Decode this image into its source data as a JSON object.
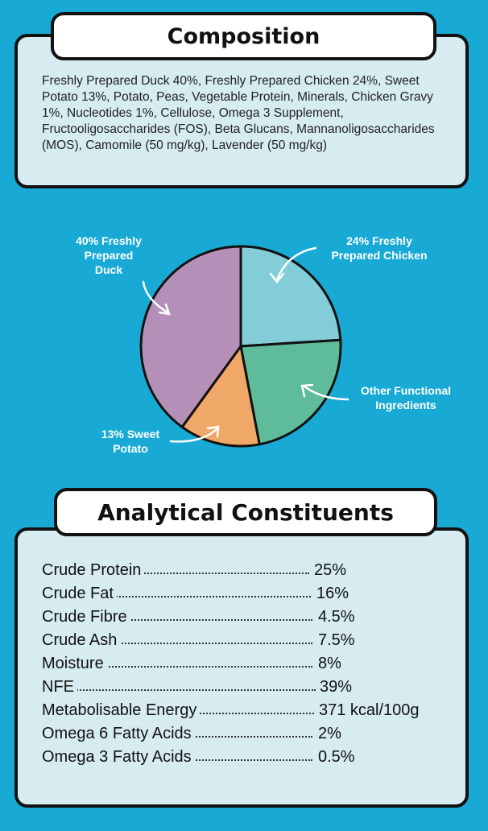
{
  "composition": {
    "title": "Composition",
    "text": "Freshly Prepared Duck 40%, Freshly Prepared Chicken 24%, Sweet Potato 13%, Potato, Peas, Vegetable Protein, Minerals, Chicken Gravy 1%, Nucleotides 1%, Cellulose, Omega 3 Supplement, Fructooligosaccharides (FOS), Beta Glucans, Mannanoligosaccharides (MOS), Camomile (50 mg/kg), Lavender (50 mg/kg)"
  },
  "chart_data": {
    "type": "pie",
    "slices": [
      {
        "label": "24% Freshly Prepared Chicken",
        "value": 24,
        "color": "#82cdd8"
      },
      {
        "label": "Other Functional Ingredients",
        "value": 23,
        "color": "#5fbc9a"
      },
      {
        "label": "13% Sweet Potato",
        "value": 13,
        "color": "#f0a868"
      },
      {
        "label": "40% Freshly Prepared Duck",
        "value": 40,
        "color": "#b48fb7"
      }
    ],
    "labels": {
      "chicken": "24% Freshly Prepared Chicken",
      "other": "Other Functional Ingredients",
      "sweet_potato": "13% Sweet Potato",
      "duck": "40% Freshly Prepared Duck"
    }
  },
  "analytical": {
    "title": "Analytical Constituents",
    "rows": [
      {
        "name": "Crude Protein",
        "value": "25%"
      },
      {
        "name": "Crude Fat",
        "value": "16%"
      },
      {
        "name": "Crude Fibre",
        "value": "4.5%"
      },
      {
        "name": "Crude Ash",
        "value": "7.5%"
      },
      {
        "name": "Moisture",
        "value": "8%"
      },
      {
        "name": "NFE",
        "value": "39%"
      },
      {
        "name": "Metabolisable Energy",
        "value": "371 kcal/100g"
      },
      {
        "name": "Omega 6 Fatty Acids",
        "value": "2%"
      },
      {
        "name": "Omega 3 Fatty Acids",
        "value": "0.5%"
      }
    ]
  },
  "colors": {
    "background": "#18aad5",
    "panel": "#d6ecf1",
    "border": "#111111"
  }
}
